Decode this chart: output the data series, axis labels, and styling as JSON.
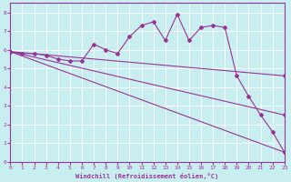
{
  "xlabel": "Windchill (Refroidissement éolien,°C)",
  "background_color": "#c8eef0",
  "line_color": "#993399",
  "grid_color": "#ffffff",
  "xlim": [
    0,
    23
  ],
  "ylim": [
    0,
    8.5
  ],
  "xticks": [
    0,
    1,
    2,
    3,
    4,
    5,
    6,
    7,
    8,
    9,
    10,
    11,
    12,
    13,
    14,
    15,
    16,
    17,
    18,
    19,
    20,
    21,
    22,
    23
  ],
  "yticks": [
    0,
    1,
    2,
    3,
    4,
    5,
    6,
    7,
    8
  ],
  "line1_x": [
    0,
    1,
    2,
    3,
    4,
    5,
    6,
    7,
    8,
    9,
    10,
    11,
    12,
    13,
    14,
    15,
    16,
    17,
    18,
    19,
    20,
    21,
    22,
    23
  ],
  "line1_y": [
    5.9,
    5.8,
    5.8,
    5.7,
    5.5,
    5.4,
    5.4,
    6.3,
    6.0,
    5.8,
    6.7,
    7.3,
    7.5,
    6.5,
    7.9,
    6.5,
    7.2,
    7.3,
    7.2,
    4.6,
    3.5,
    2.5,
    1.6,
    0.5
  ],
  "line2_x": [
    0,
    23
  ],
  "line2_y": [
    5.9,
    4.6
  ],
  "line3_x": [
    0,
    23
  ],
  "line3_y": [
    5.9,
    2.5
  ],
  "line4_x": [
    0,
    23
  ],
  "line4_y": [
    5.9,
    0.5
  ],
  "marker": "D",
  "markersize": 2,
  "linewidth": 0.8
}
